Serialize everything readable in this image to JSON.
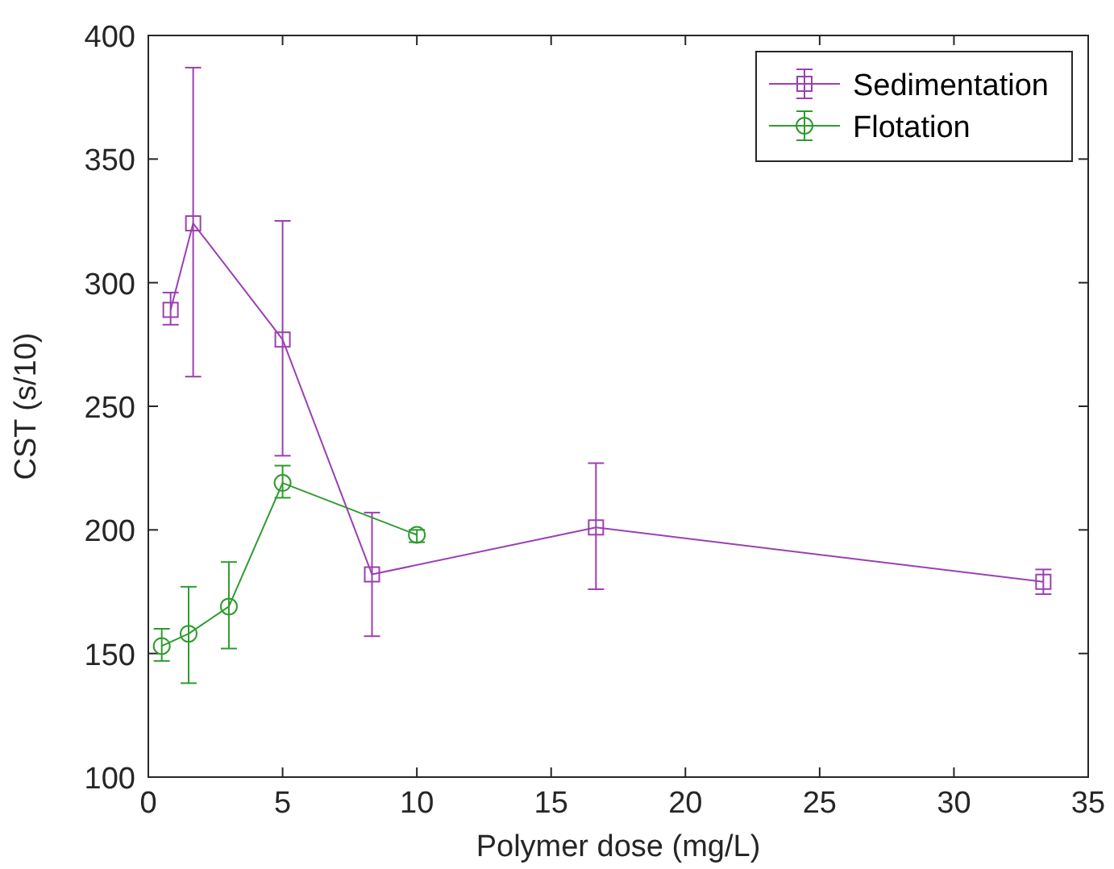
{
  "chart_data": {
    "type": "line",
    "xlabel": "Polymer dose (mg/L)",
    "ylabel": "CST (s/10)",
    "xlim": [
      0,
      35
    ],
    "xticks": [
      0,
      5,
      10,
      15,
      20,
      25,
      30,
      35
    ],
    "ylim": [
      100,
      400
    ],
    "yticks": [
      100,
      150,
      200,
      250,
      300,
      350,
      400
    ],
    "legend": "top right",
    "grid": false,
    "series": [
      {
        "name": "Sedimentation",
        "color": "#9b3fb3",
        "marker": "square",
        "x": [
          0.83,
          1.67,
          5,
          8.33,
          16.67,
          33.33
        ],
        "values": [
          289,
          324,
          277,
          182,
          201,
          179
        ],
        "errors": [
          [
            283,
            296
          ],
          [
            262,
            387
          ],
          [
            230,
            325
          ],
          [
            157,
            207
          ],
          [
            176,
            227
          ],
          [
            174,
            184
          ]
        ]
      },
      {
        "name": "Flotation",
        "color": "#2e9b2e",
        "marker": "circle",
        "x": [
          0.5,
          1.5,
          3,
          5,
          10
        ],
        "values": [
          153,
          158,
          169,
          219,
          198
        ],
        "errors": [
          [
            147,
            160
          ],
          [
            138,
            177
          ],
          [
            152,
            187
          ],
          [
            213,
            226
          ],
          [
            195,
            200
          ]
        ]
      }
    ]
  }
}
